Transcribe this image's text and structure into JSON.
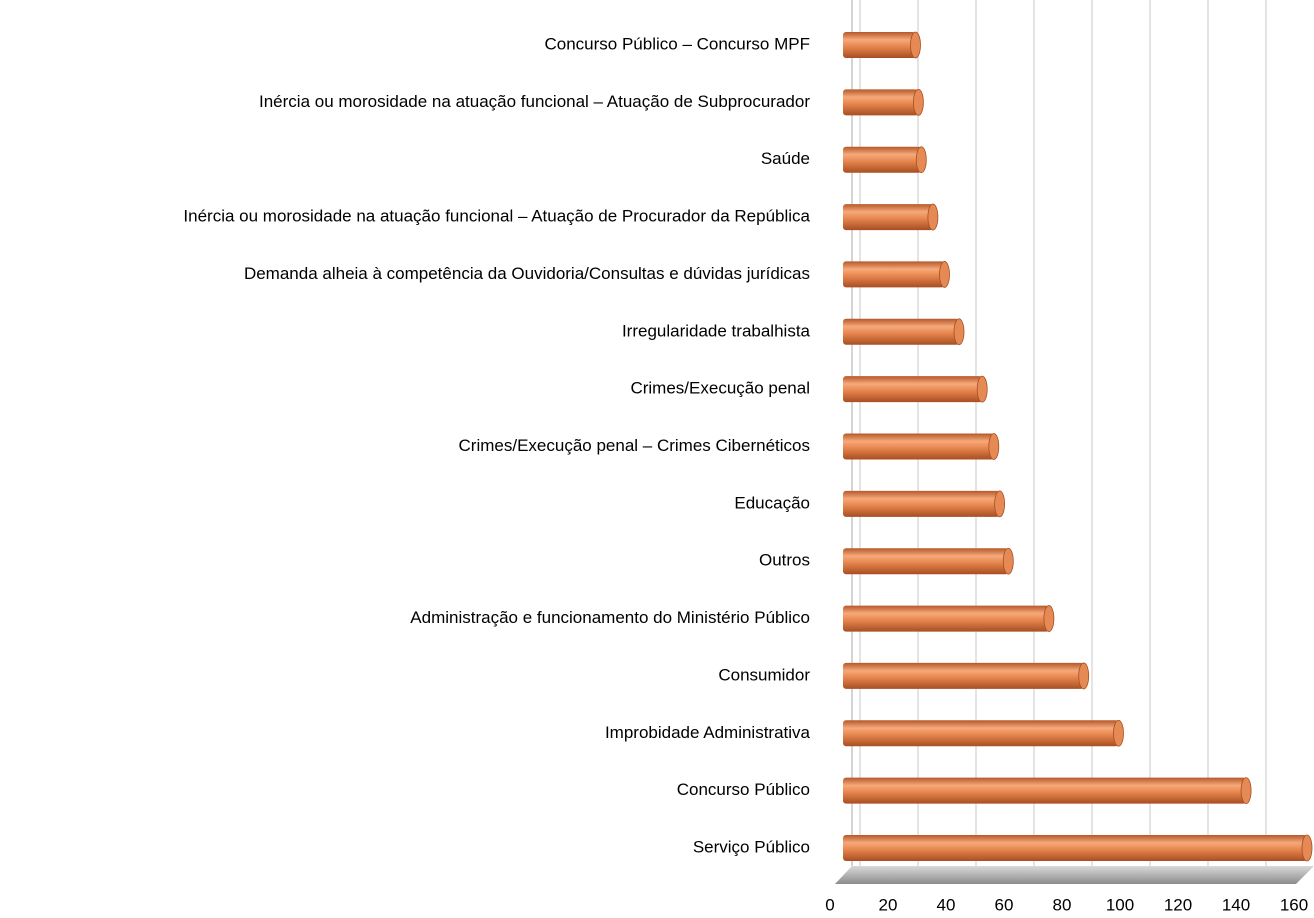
{
  "chart_data": {
    "type": "bar",
    "orientation": "horizontal",
    "categories": [
      "Concurso Público – Concurso MPF",
      "Inércia ou morosidade na atuação funcional – Atuação de Subprocurador",
      "Saúde",
      "Inércia ou morosidade na atuação funcional – Atuação de Procurador da República",
      "Demanda alheia à competência da Ouvidoria/Consultas e dúvidas jurídicas",
      "Irregularidade trabalhista",
      "Crimes/Execução penal",
      "Crimes/Execução penal – Crimes Cibernéticos",
      "Educação",
      "Outros",
      "Administração e funcionamento do Ministério Público",
      "Consumidor",
      "Improbidade Administrativa",
      "Concurso Público",
      "Serviço Público"
    ],
    "values": [
      25,
      26,
      27,
      31,
      35,
      40,
      48,
      52,
      54,
      57,
      71,
      83,
      95,
      139,
      160
    ],
    "color": "#e07a3f",
    "xlim": [
      0,
      160
    ],
    "xticks": [
      0,
      20,
      40,
      60,
      80,
      100,
      120,
      140,
      160
    ],
    "grid": true
  }
}
